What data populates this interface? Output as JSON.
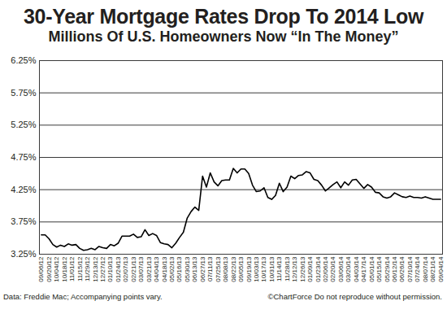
{
  "chart_data": {
    "type": "line",
    "title": "30-Year Mortgage Rates Drop To 2014 Low",
    "subtitle": "Millions Of U.S. Homeowners Now “In The Money”",
    "source": "Data: Freddie Mac; Accompanying points vary.",
    "credit": "©ChartForce  Do not reproduce without permission.",
    "categories": [
      "09/06/12",
      null,
      "09/20/12",
      null,
      "10/04/12",
      null,
      "10/18/12",
      null,
      "11/01/12",
      null,
      "11/15/12",
      null,
      "11/29/12",
      null,
      "12/13/12",
      null,
      "12/27/12",
      null,
      "01/10/13",
      null,
      "01/24/13",
      null,
      "02/07/13",
      null,
      "02/21/13",
      null,
      "03/07/13",
      null,
      "03/21/13",
      null,
      "04/04/13",
      null,
      "04/18/13",
      null,
      "05/02/13",
      null,
      "05/16/13",
      null,
      "05/30/13",
      null,
      "06/13/13",
      null,
      "06/27/13",
      null,
      "07/11/13",
      null,
      "07/25/13",
      null,
      "08/08/13",
      null,
      "08/22/13",
      null,
      "09/05/13",
      null,
      "09/19/13",
      null,
      "10/03/13",
      null,
      "10/17/13",
      null,
      "10/31/13",
      null,
      "11/14/13",
      null,
      "11/28/13",
      null,
      "12/12/13",
      null,
      "12/26/13",
      null,
      "01/09/14",
      null,
      "01/23/14",
      null,
      "02/06/14",
      null,
      "02/20/14",
      null,
      "03/06/14",
      null,
      "03/20/14",
      null,
      "04/03/14",
      null,
      "04/17/14",
      null,
      "05/01/14",
      null,
      "05/15/14",
      null,
      "05/29/14",
      null,
      "06/12/14",
      null,
      "06/26/14",
      null,
      "07/10/14",
      null,
      "07/24/14",
      null,
      "08/07/14",
      null,
      "08/21/14",
      null,
      "09/04/14"
    ],
    "values": [
      3.55,
      3.55,
      3.49,
      3.4,
      3.36,
      3.39,
      3.37,
      3.41,
      3.39,
      3.4,
      3.34,
      3.31,
      3.32,
      3.34,
      3.32,
      3.37,
      3.35,
      3.34,
      3.4,
      3.38,
      3.42,
      3.53,
      3.53,
      3.53,
      3.56,
      3.51,
      3.52,
      3.63,
      3.54,
      3.57,
      3.54,
      3.43,
      3.41,
      3.4,
      3.35,
      3.42,
      3.51,
      3.59,
      3.81,
      3.91,
      3.98,
      3.93,
      4.46,
      4.29,
      4.51,
      4.37,
      4.31,
      4.39,
      4.4,
      4.4,
      4.58,
      4.51,
      4.57,
      4.57,
      4.5,
      4.32,
      4.22,
      4.23,
      4.28,
      4.13,
      4.1,
      4.16,
      4.35,
      4.22,
      4.29,
      4.46,
      4.42,
      4.47,
      4.48,
      4.53,
      4.51,
      4.41,
      4.39,
      4.32,
      4.23,
      4.28,
      4.33,
      4.37,
      4.28,
      4.37,
      4.32,
      4.4,
      4.41,
      4.34,
      4.27,
      4.33,
      4.29,
      4.21,
      4.2,
      4.14,
      4.12,
      4.14,
      4.2,
      4.17,
      4.14,
      4.13,
      4.15,
      4.13,
      4.13,
      4.12,
      4.14,
      4.12,
      4.1,
      4.1,
      4.1
    ],
    "color": "#000000",
    "ylim": [
      3.25,
      6.25
    ],
    "yticks": [
      {
        "value": 3.25,
        "label": "3.25%"
      },
      {
        "value": 3.75,
        "label": "3.75%"
      },
      {
        "value": 4.25,
        "label": "4.25%"
      },
      {
        "value": 4.75,
        "label": "4.75%"
      },
      {
        "value": 5.25,
        "label": "5.25%"
      },
      {
        "value": 5.75,
        "label": "5.75%"
      },
      {
        "value": 6.25,
        "label": "6.25%"
      }
    ],
    "grid": true
  }
}
